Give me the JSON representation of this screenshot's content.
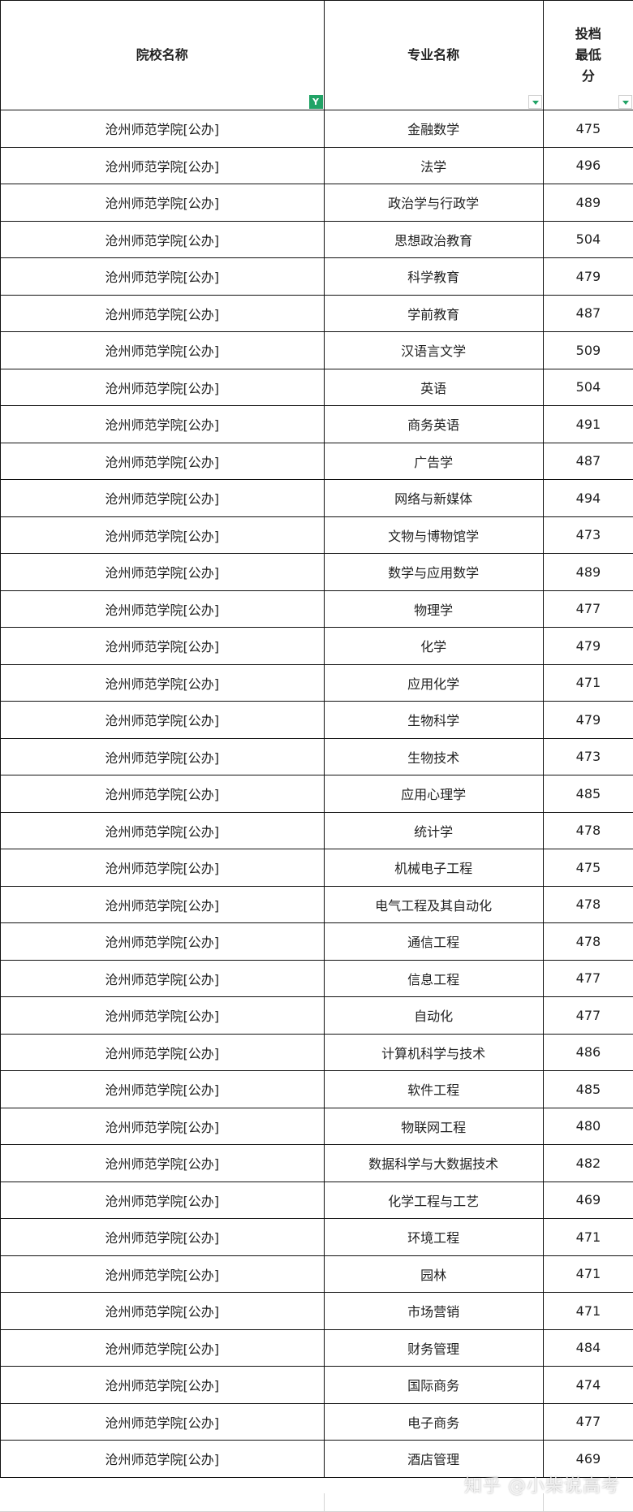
{
  "headers": [
    "院校名称",
    "专业名称",
    "投档最低分"
  ],
  "header_lines_col3": [
    "投档",
    "最低",
    "分"
  ],
  "filter_icons": [
    "filter-active-icon",
    "dropdown-arrow-icon",
    "dropdown-arrow-icon"
  ],
  "accent_color": "#21a366",
  "rows": [
    [
      "沧州师范学院[公办]",
      "金融数学",
      "475"
    ],
    [
      "沧州师范学院[公办]",
      "法学",
      "496"
    ],
    [
      "沧州师范学院[公办]",
      "政治学与行政学",
      "489"
    ],
    [
      "沧州师范学院[公办]",
      "思想政治教育",
      "504"
    ],
    [
      "沧州师范学院[公办]",
      "科学教育",
      "479"
    ],
    [
      "沧州师范学院[公办]",
      "学前教育",
      "487"
    ],
    [
      "沧州师范学院[公办]",
      "汉语言文学",
      "509"
    ],
    [
      "沧州师范学院[公办]",
      "英语",
      "504"
    ],
    [
      "沧州师范学院[公办]",
      "商务英语",
      "491"
    ],
    [
      "沧州师范学院[公办]",
      "广告学",
      "487"
    ],
    [
      "沧州师范学院[公办]",
      "网络与新媒体",
      "494"
    ],
    [
      "沧州师范学院[公办]",
      "文物与博物馆学",
      "473"
    ],
    [
      "沧州师范学院[公办]",
      "数学与应用数学",
      "489"
    ],
    [
      "沧州师范学院[公办]",
      "物理学",
      "477"
    ],
    [
      "沧州师范学院[公办]",
      "化学",
      "479"
    ],
    [
      "沧州师范学院[公办]",
      "应用化学",
      "471"
    ],
    [
      "沧州师范学院[公办]",
      "生物科学",
      "479"
    ],
    [
      "沧州师范学院[公办]",
      "生物技术",
      "473"
    ],
    [
      "沧州师范学院[公办]",
      "应用心理学",
      "485"
    ],
    [
      "沧州师范学院[公办]",
      "统计学",
      "478"
    ],
    [
      "沧州师范学院[公办]",
      "机械电子工程",
      "475"
    ],
    [
      "沧州师范学院[公办]",
      "电气工程及其自动化",
      "478"
    ],
    [
      "沧州师范学院[公办]",
      "通信工程",
      "478"
    ],
    [
      "沧州师范学院[公办]",
      "信息工程",
      "477"
    ],
    [
      "沧州师范学院[公办]",
      "自动化",
      "477"
    ],
    [
      "沧州师范学院[公办]",
      "计算机科学与技术",
      "486"
    ],
    [
      "沧州师范学院[公办]",
      "软件工程",
      "485"
    ],
    [
      "沧州师范学院[公办]",
      "物联网工程",
      "480"
    ],
    [
      "沧州师范学院[公办]",
      "数据科学与大数据技术",
      "482"
    ],
    [
      "沧州师范学院[公办]",
      "化学工程与工艺",
      "469"
    ],
    [
      "沧州师范学院[公办]",
      "环境工程",
      "471"
    ],
    [
      "沧州师范学院[公办]",
      "园林",
      "471"
    ],
    [
      "沧州师范学院[公办]",
      "市场营销",
      "471"
    ],
    [
      "沧州师范学院[公办]",
      "财务管理",
      "484"
    ],
    [
      "沧州师范学院[公办]",
      "国际商务",
      "474"
    ],
    [
      "沧州师范学院[公办]",
      "电子商务",
      "477"
    ],
    [
      "沧州师范学院[公办]",
      "酒店管理",
      "469"
    ]
  ],
  "watermark": "知乎 @小柴说高考"
}
